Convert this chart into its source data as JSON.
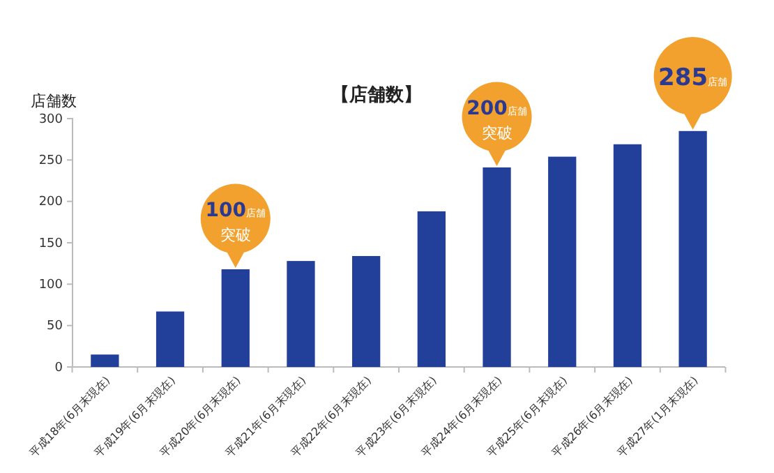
{
  "chart_data": {
    "type": "bar",
    "title": "【店舗数】",
    "ylabel": "店舗数",
    "categories": [
      "平成18年(6月末現在)",
      "平成19年(6月末現在)",
      "平成20年(6月末現在)",
      "平成21年(6月末現在)",
      "平成22年(6月末現在)",
      "平成23年(6月末現在)",
      "平成24年(6月末現在)",
      "平成25年(6月末現在)",
      "平成26年(6月末現在)",
      "平成27年(1月末現在)"
    ],
    "values": [
      15,
      67,
      118,
      128,
      134,
      188,
      241,
      254,
      269,
      285
    ],
    "color": "#22409a",
    "ylim": [
      0,
      300
    ],
    "yticks": [
      0,
      50,
      100,
      150,
      200,
      250,
      300
    ],
    "grid": false,
    "annotations": [
      {
        "text": "100店舗突破",
        "x": "平成20年(6月末現在)",
        "y": 118
      },
      {
        "text": "200店舗突破",
        "x": "平成24年(6月末現在)",
        "y": 241
      },
      {
        "text": "285店舗",
        "x": "平成27年(1月末現在)",
        "y": 285
      }
    ]
  }
}
